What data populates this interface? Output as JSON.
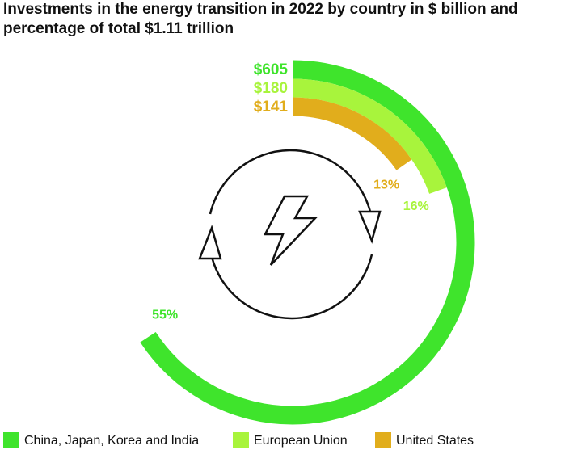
{
  "chart_data": {
    "type": "radial_bar",
    "title": "Investments in the energy transition in 2022 by country in $ billion and percentage of total $1.11 trillion",
    "series": [
      {
        "name": "China, Japan, Korea and India",
        "color": "#3fe42c",
        "values": [
          605
        ],
        "value_labels": [
          "$605"
        ],
        "shares": [
          55
        ],
        "share_labels": [
          "55%"
        ]
      },
      {
        "name": "European Union",
        "color": "#a8f43c",
        "values": [
          180
        ],
        "value_labels": [
          "$180"
        ],
        "shares": [
          16
        ],
        "share_labels": [
          "16%"
        ]
      },
      {
        "name": "United States",
        "color": "#e1ad1c",
        "values": [
          141
        ],
        "value_labels": [
          "$141"
        ],
        "shares": [
          13
        ],
        "share_labels": [
          "13%"
        ]
      }
    ],
    "xlim": [
      0,
      920
    ]
  }
}
